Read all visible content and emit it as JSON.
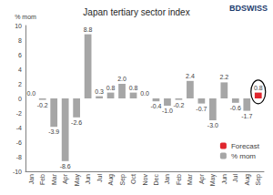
{
  "chart_data": {
    "type": "bar",
    "title": "Japan tertiary sector index",
    "logo": "BDSWISS",
    "y_label": "% mom",
    "categories": [
      "Jan",
      "Feb",
      "Mar",
      "Apr",
      "May",
      "Jun",
      "Jul",
      "Aug",
      "Sep",
      "Oct",
      "Nov",
      "Dec",
      "Jan",
      "Feb",
      "Mar",
      "Apr",
      "May",
      "Jun",
      "Jul",
      "Aug",
      "Sep"
    ],
    "series": [
      {
        "name": "% mom",
        "color": "#a6a6a6",
        "values": [
          0.0,
          -0.2,
          -3.9,
          -8.6,
          -2.6,
          8.8,
          0.3,
          0.8,
          2.0,
          0.8,
          0.0,
          -0.4,
          -1.0,
          -0.2,
          2.4,
          -0.7,
          -3.0,
          2.2,
          -0.6,
          -1.7,
          null
        ],
        "value_labels": [
          "0.0",
          "-0.2",
          "-3.9",
          "-8.6",
          "-2.6",
          "8.8",
          "0.3",
          "0.8",
          "2.0",
          "0.8",
          "0.0",
          "-0.4",
          "-1.0",
          "-0.2",
          "2.4",
          "-0.7",
          "-3.0",
          "2.2",
          "-0.6",
          "-1.7",
          null
        ]
      },
      {
        "name": "Forecast",
        "color": "#e0262e",
        "values": [
          null,
          null,
          null,
          null,
          null,
          null,
          null,
          null,
          null,
          null,
          null,
          null,
          null,
          null,
          null,
          null,
          null,
          null,
          null,
          null,
          0.8
        ],
        "value_labels": [
          null,
          null,
          null,
          null,
          null,
          null,
          null,
          null,
          null,
          null,
          null,
          null,
          null,
          null,
          null,
          null,
          null,
          null,
          null,
          null,
          "0.8"
        ]
      }
    ],
    "ylim": [
      -10,
      10
    ],
    "yticks": [
      -10,
      -8,
      -6,
      -4,
      -2,
      0,
      2,
      4,
      6,
      8,
      10
    ],
    "grid": false,
    "legend": "lower right",
    "data_labels": true
  }
}
